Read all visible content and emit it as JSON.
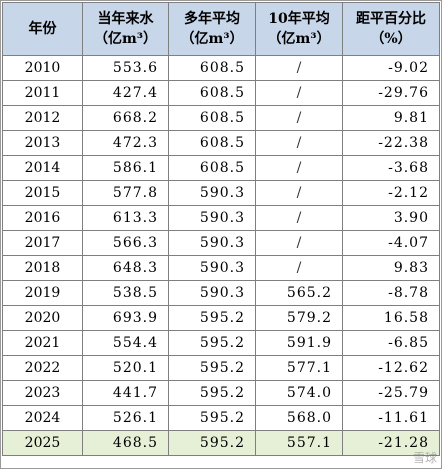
{
  "table": {
    "headers": [
      {
        "line1": "年份",
        "line2": ""
      },
      {
        "line1": "当年来水",
        "line2": "（亿m³）"
      },
      {
        "line1": "多年平均",
        "line2": "（亿m³）"
      },
      {
        "line1": "10年平均",
        "line2": "（亿m³）"
      },
      {
        "line1": "距平百分比",
        "line2": "（%）"
      }
    ],
    "rows": [
      {
        "year": "2010",
        "current": "553.6",
        "multi_avg": "608.5",
        "ten_avg": "/",
        "anomaly": "-9.02"
      },
      {
        "year": "2011",
        "current": "427.4",
        "multi_avg": "608.5",
        "ten_avg": "/",
        "anomaly": "-29.76"
      },
      {
        "year": "2012",
        "current": "668.2",
        "multi_avg": "608.5",
        "ten_avg": "/",
        "anomaly": "9.81"
      },
      {
        "year": "2013",
        "current": "472.3",
        "multi_avg": "608.5",
        "ten_avg": "/",
        "anomaly": "-22.38"
      },
      {
        "year": "2014",
        "current": "586.1",
        "multi_avg": "608.5",
        "ten_avg": "/",
        "anomaly": "-3.68"
      },
      {
        "year": "2015",
        "current": "577.8",
        "multi_avg": "590.3",
        "ten_avg": "/",
        "anomaly": "-2.12"
      },
      {
        "year": "2016",
        "current": "613.3",
        "multi_avg": "590.3",
        "ten_avg": "/",
        "anomaly": "3.90"
      },
      {
        "year": "2017",
        "current": "566.3",
        "multi_avg": "590.3",
        "ten_avg": "/",
        "anomaly": "-4.07"
      },
      {
        "year": "2018",
        "current": "648.3",
        "multi_avg": "590.3",
        "ten_avg": "/",
        "anomaly": "9.83"
      },
      {
        "year": "2019",
        "current": "538.5",
        "multi_avg": "590.3",
        "ten_avg": "565.2",
        "anomaly": "-8.78"
      },
      {
        "year": "2020",
        "current": "693.9",
        "multi_avg": "595.2",
        "ten_avg": "579.2",
        "anomaly": "16.58"
      },
      {
        "year": "2021",
        "current": "554.4",
        "multi_avg": "595.2",
        "ten_avg": "591.9",
        "anomaly": "-6.85"
      },
      {
        "year": "2022",
        "current": "520.1",
        "multi_avg": "595.2",
        "ten_avg": "577.1",
        "anomaly": "-12.62"
      },
      {
        "year": "2023",
        "current": "441.7",
        "multi_avg": "595.2",
        "ten_avg": "574.0",
        "anomaly": "-25.79"
      },
      {
        "year": "2024",
        "current": "526.1",
        "multi_avg": "595.2",
        "ten_avg": "568.0",
        "anomaly": "-11.61"
      },
      {
        "year": "2025",
        "current": "468.5",
        "multi_avg": "595.2",
        "ten_avg": "557.1",
        "anomaly": "-21.28"
      }
    ],
    "highlight_row_color": "#e6f0d6",
    "header_color": "#c8d6ea"
  }
}
